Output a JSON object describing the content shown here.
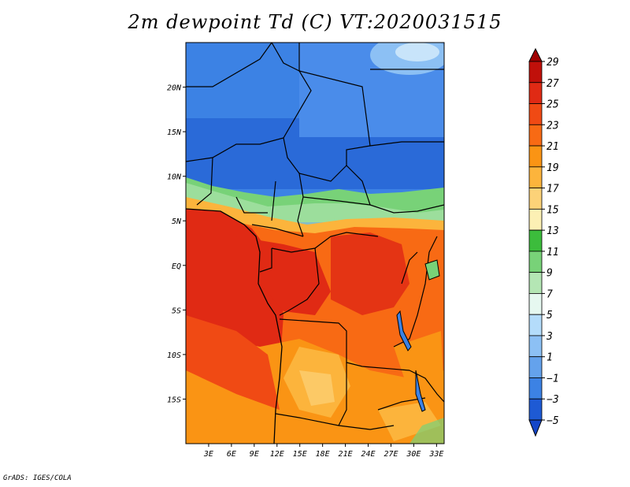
{
  "title": "2m dewpoint Td (C) VT:2020031515",
  "footer": "GrADS: IGES/COLA",
  "map": {
    "lat_labels": [
      "20N",
      "15N",
      "10N",
      "5N",
      "EQ",
      "5S",
      "10S",
      "15S"
    ],
    "lats": [
      20,
      15,
      10,
      5,
      0,
      -5,
      -10,
      -15
    ],
    "lon_labels": [
      "3E",
      "6E",
      "9E",
      "12E",
      "15E",
      "18E",
      "21E",
      "24E",
      "27E",
      "30E",
      "33E"
    ],
    "lons": [
      3,
      6,
      9,
      12,
      15,
      18,
      21,
      24,
      27,
      30,
      33
    ],
    "lon_range": [
      0,
      34
    ],
    "lat_range": [
      -20,
      25
    ]
  },
  "colorbar": {
    "labels": [
      "29",
      "27",
      "25",
      "23",
      "21",
      "19",
      "17",
      "15",
      "13",
      "11",
      "9",
      "7",
      "5",
      "3",
      "1",
      "−1",
      "−3",
      "−5"
    ],
    "colors": [
      "#a00000",
      "#c0100a",
      "#e02a14",
      "#f04a14",
      "#f86a14",
      "#fa9414",
      "#fcb43c",
      "#fcd278",
      "#fcf0b4",
      "#3cbc3c",
      "#78d278",
      "#b4e6b4",
      "#e6f8f0",
      "#b4dcfa",
      "#8cc0f4",
      "#64a2ec",
      "#3c82e4",
      "#1e5ad4",
      "#1446c8"
    ]
  }
}
